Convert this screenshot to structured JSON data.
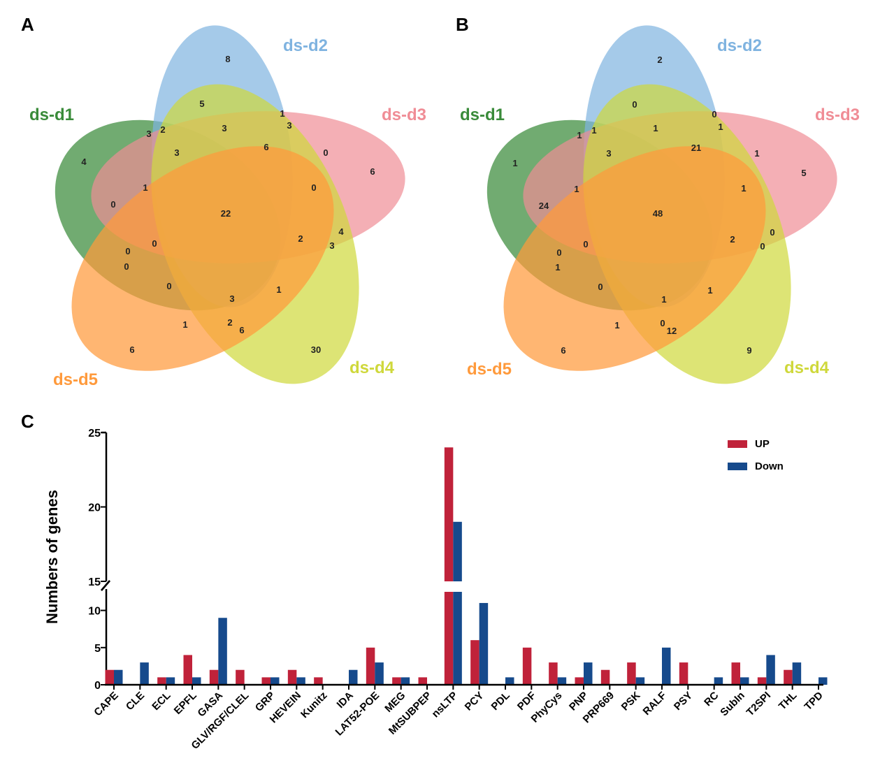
{
  "panels": {
    "a": "A",
    "b": "B",
    "c": "C"
  },
  "venn_sets": [
    {
      "key": "d1",
      "label": "ds-d1",
      "color": "#3a8b3a"
    },
    {
      "key": "d2",
      "label": "ds-d2",
      "color": "#7fb3e0"
    },
    {
      "key": "d3",
      "label": "ds-d3",
      "color": "#f08d96"
    },
    {
      "key": "d4",
      "label": "ds-d4",
      "color": "#cfd83b"
    },
    {
      "key": "d5",
      "label": "ds-d5",
      "color": "#ff9a3c"
    }
  ],
  "venn_a": {
    "only_d1": "4",
    "only_d2": "8",
    "only_d3": "6",
    "only_d4": "30",
    "only_d5": "6",
    "d1_d2": "3",
    "d2_d3": "1",
    "d3_d4": "4",
    "d4_d5": "6",
    "d1_d5": "0",
    "r1": "2",
    "r2": "5",
    "r3": "3",
    "r4": "3",
    "r5": "3",
    "r6": "6",
    "r7": "0",
    "r8": "1",
    "r9": "0",
    "r10": "0",
    "r11": "2",
    "r12": "3",
    "r13": "0",
    "r14": "0",
    "r15": "0",
    "r16": "3",
    "r17": "1",
    "r18": "1",
    "r19": "2",
    "center": "22"
  },
  "venn_b": {
    "only_d1": "1",
    "only_d2": "2",
    "only_d3": "5",
    "only_d4": "9",
    "only_d5": "6",
    "d1_d2": "1",
    "d2_d3": "0",
    "d3_d4": "0",
    "d4_d5": "12",
    "d1_d5": "1",
    "r1": "1",
    "r2": "0",
    "r3": "1",
    "r4": "1",
    "r5": "3",
    "r6": "21",
    "r7": "1",
    "r8": "1",
    "r9": "1",
    "r10": "24",
    "r11": "2",
    "r12": "0",
    "r13": "0",
    "r14": "0",
    "r15": "0",
    "r16": "1",
    "r17": "1",
    "r18": "1",
    "r19": "0",
    "center": "48"
  },
  "chart_data": {
    "type": "bar",
    "ylabel": "Numbers of genes",
    "y_ticks": [
      "0",
      "5",
      "10",
      "15",
      "20",
      "25"
    ],
    "y_break": [
      12.5,
      15
    ],
    "categories": [
      "CAPE",
      "CLE",
      "ECL",
      "EPFL",
      "GASA",
      "GLV/RGF/CLEL",
      "GRP",
      "HEVEIN",
      "Kunitz",
      "IDA",
      "LAT52-POE",
      "MEG",
      "MtSUBPEP",
      "nsLTP",
      "PCY",
      "PDL",
      "PDF",
      "PhyCys",
      "PNP",
      "PRP669",
      "PSK",
      "RALF",
      "PSY",
      "RC",
      "SubIn",
      "T2SPI",
      "THL",
      "TPD"
    ],
    "series": [
      {
        "name": "UP",
        "color": "#c0223a",
        "values": [
          2,
          0,
          1,
          4,
          2,
          2,
          1,
          2,
          1,
          0,
          5,
          1,
          1,
          24,
          6,
          0,
          5,
          3,
          1,
          2,
          3,
          0,
          3,
          0,
          3,
          1,
          2,
          0
        ]
      },
      {
        "name": "Down",
        "color": "#164a8c",
        "values": [
          2,
          3,
          1,
          1,
          9,
          0,
          1,
          1,
          0,
          2,
          3,
          1,
          0,
          19,
          11,
          1,
          0,
          1,
          3,
          0,
          1,
          5,
          0,
          1,
          1,
          4,
          3,
          1
        ]
      }
    ],
    "legend_position": "top-right"
  }
}
